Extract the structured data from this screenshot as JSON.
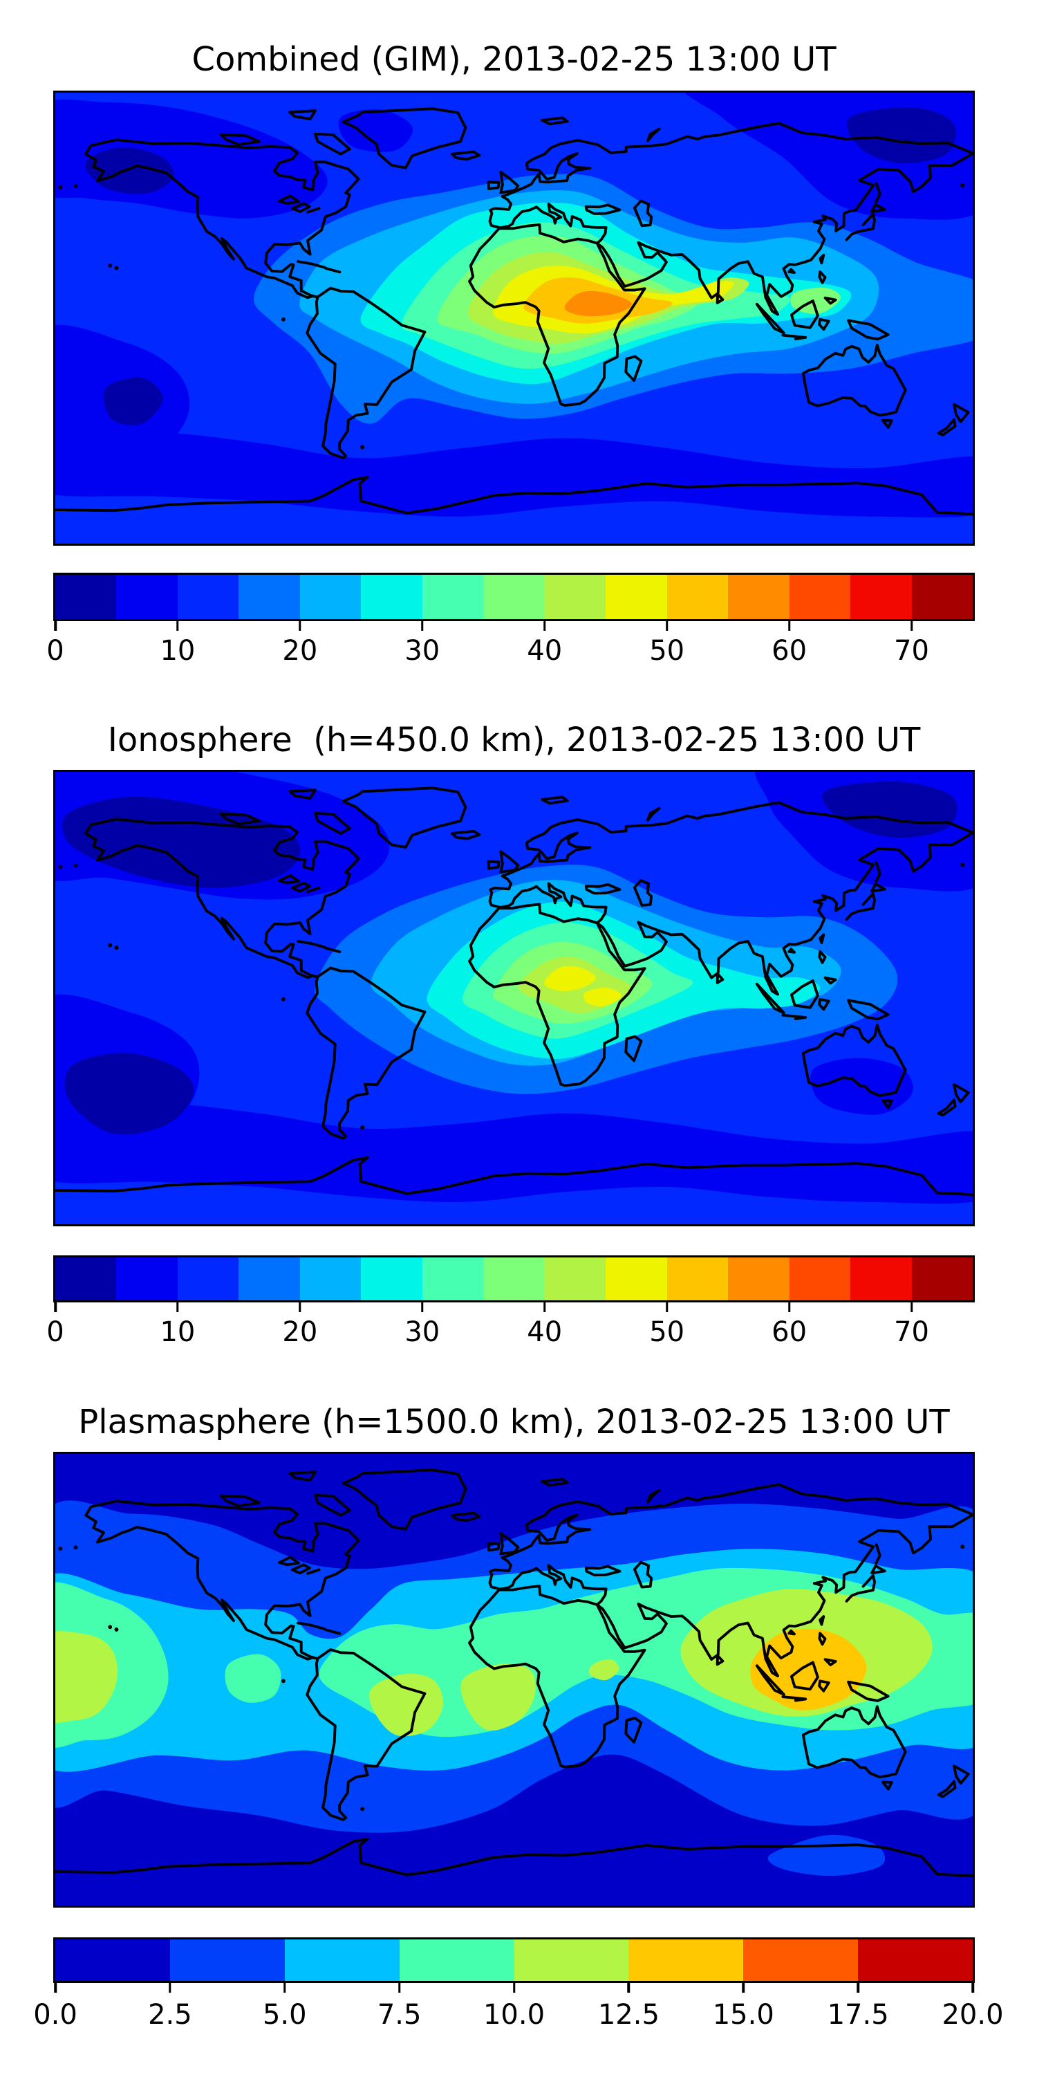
{
  "figure": {
    "background": "#ffffff",
    "text_color": "#000000",
    "projection": "equirectangular world map, lon -180..180, lat -90..90, coastlines in black"
  },
  "panels": [
    {
      "id": "combined",
      "title": "Combined (GIM), 2013-02-25 13:00 UT",
      "colorbar": {
        "orientation": "horizontal",
        "range": [
          0,
          75
        ],
        "tick_values": [
          0,
          10,
          20,
          30,
          40,
          50,
          60,
          70
        ],
        "tick_labels": [
          "0",
          "10",
          "20",
          "30",
          "40",
          "50",
          "60",
          "70"
        ],
        "segment_colors": [
          "#0000a6",
          "#0000f2",
          "#0028ff",
          "#0070ff",
          "#00b2ff",
          "#00f5e8",
          "#46ffb0",
          "#7dff79",
          "#b2f244",
          "#eef400",
          "#ffc400",
          "#ff8c00",
          "#ff4a00",
          "#f30800",
          "#a60000"
        ]
      }
    },
    {
      "id": "ionosphere",
      "title": "Ionosphere  (h=450.0 km), 2013-02-25 13:00 UT",
      "colorbar": {
        "orientation": "horizontal",
        "range": [
          0,
          75
        ],
        "tick_values": [
          0,
          10,
          20,
          30,
          40,
          50,
          60,
          70
        ],
        "tick_labels": [
          "0",
          "10",
          "20",
          "30",
          "40",
          "50",
          "60",
          "70"
        ],
        "segment_colors": [
          "#0000a6",
          "#0000f2",
          "#0028ff",
          "#0070ff",
          "#00b2ff",
          "#00f5e8",
          "#46ffb0",
          "#7dff79",
          "#b2f244",
          "#eef400",
          "#ffc400",
          "#ff8c00",
          "#ff4a00",
          "#f30800",
          "#a60000"
        ]
      }
    },
    {
      "id": "plasmasphere",
      "title": "Plasmasphere (h=1500.0 km), 2013-02-25 13:00 UT",
      "colorbar": {
        "orientation": "horizontal",
        "range": [
          0,
          20
        ],
        "tick_values": [
          0,
          2.5,
          5,
          7.5,
          10,
          12.5,
          15,
          17.5,
          20
        ],
        "tick_labels": [
          "0.0",
          "2.5",
          "5.0",
          "7.5",
          "10.0",
          "12.5",
          "15.0",
          "17.5",
          "20.0"
        ],
        "segment_colors": [
          "#0000c8",
          "#0040fb",
          "#00c0ff",
          "#46ffae",
          "#b2f544",
          "#ffc800",
          "#ff5a00",
          "#c80000"
        ]
      }
    }
  ],
  "chart_data": [
    {
      "type": "heatmap",
      "subtype": "filled-contour world map",
      "title": "Combined (GIM), 2013-02-25 13:00 UT",
      "colormap": "jet",
      "contour_levels": [
        0,
        5,
        10,
        15,
        20,
        25,
        30,
        35,
        40,
        45,
        50,
        55,
        60,
        65,
        70,
        75
      ],
      "colorbar_ticks": [
        0,
        10,
        20,
        30,
        40,
        50,
        60,
        70
      ],
      "lon_range": [
        -180,
        180
      ],
      "lat_range": [
        -90,
        90
      ],
      "grid": false,
      "features": [
        {
          "name": "equatorial maximum",
          "lon": 28,
          "lat": 3,
          "value_band": "55-60"
        },
        {
          "name": "orange-yellow core 50-55",
          "extent": "lon 2E..72E, lat 20N..-8S over north-central Africa and Arabia"
        },
        {
          "name": "yellow band 45-50",
          "extent": "lon -5W..90E including India"
        },
        {
          "name": "enhanced 25-45 region",
          "extent": "tilted band from eastern South America across Africa to Southeast Asia (lon -60..140E, lat 30N..-35S)"
        },
        {
          "name": "cyan tongue 25-30",
          "extent": "extends east over Indonesia to lon ~132E"
        },
        {
          "name": "low TEC 0-5 patches",
          "extent": "North Pacific near Alaska and northeast Siberia"
        },
        {
          "name": "background",
          "value_band": "10-15 over most oceans, 5-10 at high latitudes"
        }
      ]
    },
    {
      "type": "heatmap",
      "subtype": "filled-contour world map",
      "title": "Ionosphere  (h=450.0 km), 2013-02-25 13:00 UT",
      "colormap": "jet",
      "contour_levels": [
        0,
        5,
        10,
        15,
        20,
        25,
        30,
        35,
        40,
        45,
        50,
        55,
        60,
        65,
        70,
        75
      ],
      "colorbar_ticks": [
        0,
        10,
        20,
        30,
        40,
        50,
        60,
        70
      ],
      "lon_range": [
        -180,
        180
      ],
      "lat_range": [
        -90,
        90
      ],
      "grid": false,
      "features": [
        {
          "name": "yellow maxima 45-50 (two lobes)",
          "lobes": [
            {
              "lon": 19,
              "lat": 7
            },
            {
              "lon": 34,
              "lat": -1
            }
          ]
        },
        {
          "name": "yellow-green 40-45",
          "extent": "central Africa lon 2E..46E, lat 14N..-7S"
        },
        {
          "name": "enhanced 25-40 region",
          "extent": "South Atlantic to Africa to southern India (lon -20..80E)"
        },
        {
          "name": "cyan tongue 25-30",
          "extent": "extends over Sumatra/Java to lon ~117E"
        },
        {
          "name": "low TEC 0-5 regions",
          "extent": "large areas over North America / NE Pacific, NE Asia and South Pacific"
        },
        {
          "name": "low TEC 5-10 patch",
          "extent": "central Australia"
        },
        {
          "name": "background",
          "value_band": "10-15"
        }
      ]
    },
    {
      "type": "heatmap",
      "subtype": "filled-contour world map",
      "title": "Plasmasphere (h=1500.0 km), 2013-02-25 13:00 UT",
      "colormap": "jet",
      "contour_levels": [
        0,
        2.5,
        5,
        7.5,
        10,
        12.5,
        15,
        17.5,
        20
      ],
      "colorbar_ticks": [
        0,
        2.5,
        5,
        7.5,
        10,
        12.5,
        15,
        17.5,
        20
      ],
      "lon_range": [
        -180,
        180
      ],
      "lat_range": [
        -90,
        90
      ],
      "grid": false,
      "features": [
        {
          "name": "maximum 12.5-15",
          "extent": "maritime Southeast Asia / Indonesia, lon 95E..140E, lat 12N..-14S"
        },
        {
          "name": "10-12.5 blobs",
          "extent": "far west Pacific edge, northern South America, tropical Atlantic, small spot near lon 32E, and large Asia/west-Pacific region lon 66E..164E"
        },
        {
          "name": "7.5-10 band",
          "extent": "meandering equatorial band, higher latitude over Asia (up to ~40N), dipping south over the Americas"
        },
        {
          "name": "5-7.5 cyan band",
          "extent": "lat ~38N..-32S with southward dip over Caribbean and pinch near Madagascar"
        },
        {
          "name": "polar minima 0-2.5",
          "extent": "poleward of ~50N and ~-45S"
        },
        {
          "name": "2.5-5 note",
          "extent": "detached brighter patch at Antarctic coast near lon 100E..145E"
        }
      ]
    }
  ]
}
